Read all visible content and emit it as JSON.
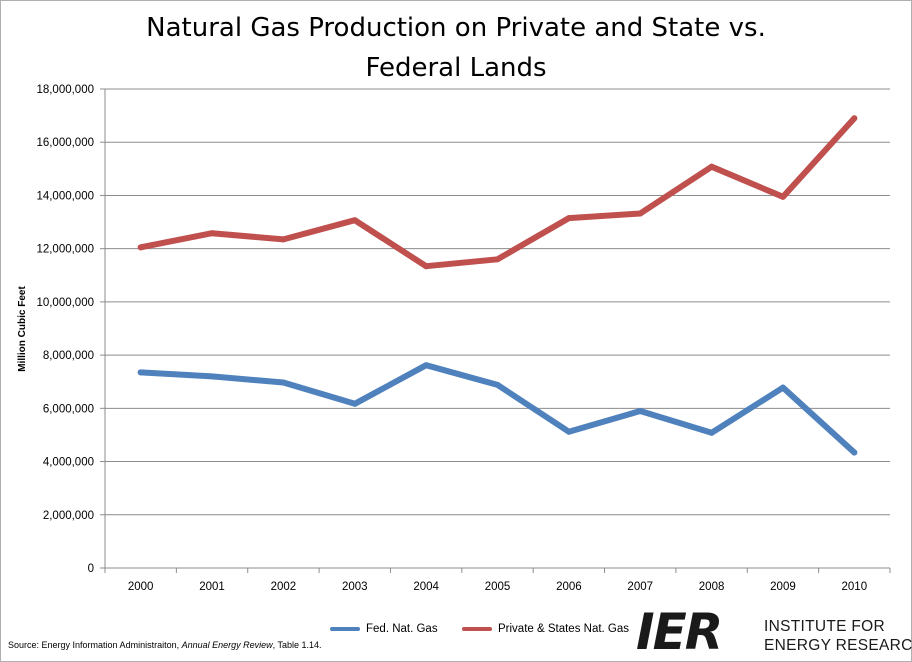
{
  "chart_data": {
    "type": "line",
    "title_lines": [
      "Natural Gas Production on Private and State vs.",
      "Federal Lands"
    ],
    "ylabel": "Million  Cubic Feet",
    "xlabel": "",
    "categories": [
      "2000",
      "2001",
      "2002",
      "2003",
      "2004",
      "2005",
      "2006",
      "2007",
      "2008",
      "2009",
      "2010"
    ],
    "ylim": [
      0,
      18000000
    ],
    "ytick_values": [
      0,
      2000000,
      4000000,
      6000000,
      8000000,
      10000000,
      12000000,
      14000000,
      16000000,
      18000000
    ],
    "ytick_labels": [
      "0",
      "2,000,000",
      "4,000,000",
      "6,000,000",
      "8,000,000",
      "10,000,000",
      "12,000,000",
      "14,000,000",
      "16,000,000",
      "18,000,000"
    ],
    "grid": true,
    "legend_position": "bottom",
    "series": [
      {
        "name": "Fed. Nat. Gas",
        "color": "#4f81bd",
        "values": [
          7350000,
          7200000,
          6970000,
          6170000,
          7620000,
          6880000,
          5120000,
          5900000,
          5080000,
          6780000,
          4340000
        ]
      },
      {
        "name": "Private & States Nat. Gas",
        "color": "#c0504d",
        "values": [
          12050000,
          12580000,
          12350000,
          13070000,
          11340000,
          11600000,
          13150000,
          13320000,
          15080000,
          13950000,
          16900000
        ]
      }
    ]
  },
  "source": {
    "prefix": "Source: Energy Information Administraiton, ",
    "italic": "Annual Energy Review",
    "suffix": ", Table 1.14."
  },
  "logo": {
    "mark": "IER",
    "line1": "INSTITUTE FOR",
    "line2": "ENERGY RESEARCH"
  }
}
